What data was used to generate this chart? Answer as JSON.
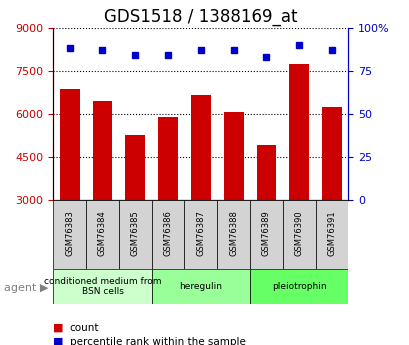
{
  "title": "GDS1518 / 1388169_at",
  "categories": [
    "GSM76383",
    "GSM76384",
    "GSM76385",
    "GSM76386",
    "GSM76387",
    "GSM76388",
    "GSM76389",
    "GSM76390",
    "GSM76391"
  ],
  "bar_values": [
    6850,
    6450,
    5250,
    5900,
    6650,
    6050,
    4900,
    7750,
    6250
  ],
  "percentile_values": [
    88,
    87,
    84,
    84,
    87,
    87,
    83,
    90,
    87
  ],
  "bar_color": "#CC0000",
  "dot_color": "#0000CC",
  "ylim_left": [
    3000,
    9000
  ],
  "ylim_right": [
    0,
    100
  ],
  "yticks_left": [
    3000,
    4500,
    6000,
    7500,
    9000
  ],
  "yticks_right": [
    0,
    25,
    50,
    75,
    100
  ],
  "yticklabels_right": [
    "0",
    "25",
    "50",
    "75",
    "100%"
  ],
  "groups": [
    {
      "label": "conditioned medium from\nBSN cells",
      "start": 0,
      "end": 3,
      "color": "#ccffcc"
    },
    {
      "label": "heregulin",
      "start": 3,
      "end": 6,
      "color": "#99ff99"
    },
    {
      "label": "pleiotrophin",
      "start": 6,
      "end": 9,
      "color": "#66ff66"
    }
  ],
  "agent_label": "agent",
  "legend_items": [
    {
      "color": "#CC0000",
      "label": "count"
    },
    {
      "color": "#0000CC",
      "label": "percentile rank within the sample"
    }
  ],
  "grid_color": "#000000",
  "background_color": "#ffffff",
  "plot_bg_color": "#ffffff",
  "title_fontsize": 12,
  "tick_fontsize": 8,
  "bar_width": 0.6
}
